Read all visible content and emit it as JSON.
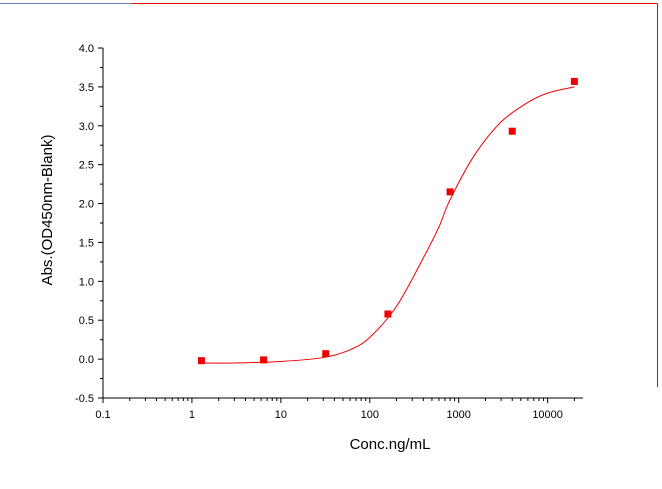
{
  "chart_data": {
    "type": "scatter",
    "title": "",
    "xlabel": "Conc.ng/mL",
    "ylabel": "Abs.(OD450nm-Blank)",
    "x_scale": "log",
    "xlim": [
      0.1,
      25000
    ],
    "ylim": [
      -0.5,
      4.0
    ],
    "x_ticks": [
      0.1,
      1,
      10,
      100,
      1000,
      10000
    ],
    "x_tick_labels": [
      "0.1",
      "1",
      "10",
      "100",
      "1000",
      "10000"
    ],
    "y_ticks": [
      -0.5,
      0.0,
      0.5,
      1.0,
      1.5,
      2.0,
      2.5,
      3.0,
      3.5,
      4.0
    ],
    "y_tick_labels": [
      "-0.5",
      "0.0",
      "0.5",
      "1.0",
      "1.5",
      "2.0",
      "2.5",
      "3.0",
      "3.5",
      "4.0"
    ],
    "grid": false,
    "series": [
      {
        "type": "scatter",
        "marker": "square",
        "color": "#ee0000",
        "points": [
          {
            "x": 1.28,
            "y": -0.02
          },
          {
            "x": 6.4,
            "y": -0.01
          },
          {
            "x": 32,
            "y": 0.07
          },
          {
            "x": 160,
            "y": 0.58
          },
          {
            "x": 800,
            "y": 2.15
          },
          {
            "x": 4000,
            "y": 2.93
          },
          {
            "x": 20000,
            "y": 3.57
          }
        ]
      },
      {
        "type": "line",
        "color": "#ee0000",
        "fit": "4PL",
        "points": [
          {
            "x": 1.28,
            "y": -0.05
          },
          {
            "x": 3,
            "y": -0.05
          },
          {
            "x": 10,
            "y": -0.03
          },
          {
            "x": 30,
            "y": 0.02
          },
          {
            "x": 60,
            "y": 0.12
          },
          {
            "x": 100,
            "y": 0.28
          },
          {
            "x": 200,
            "y": 0.68
          },
          {
            "x": 400,
            "y": 1.3
          },
          {
            "x": 600,
            "y": 1.7
          },
          {
            "x": 800,
            "y": 2.05
          },
          {
            "x": 1500,
            "y": 2.62
          },
          {
            "x": 3000,
            "y": 3.05
          },
          {
            "x": 6000,
            "y": 3.3
          },
          {
            "x": 10000,
            "y": 3.42
          },
          {
            "x": 20000,
            "y": 3.5
          }
        ]
      }
    ]
  }
}
